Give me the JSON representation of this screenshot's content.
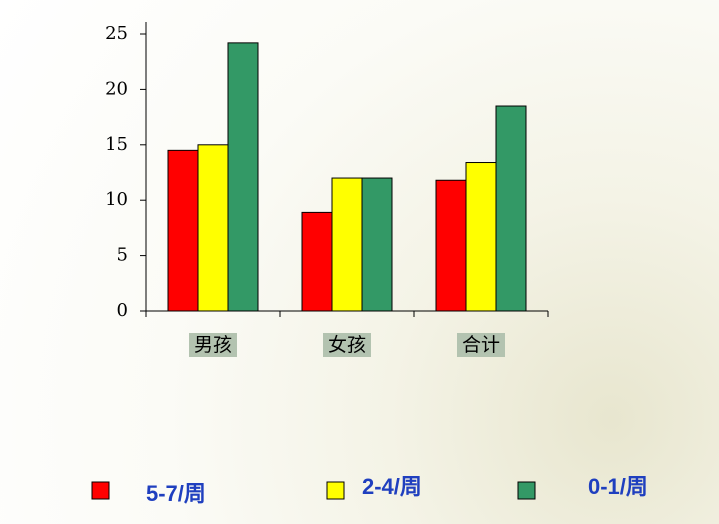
{
  "chart_data": {
    "type": "bar",
    "categories": [
      "男孩",
      "女孩",
      "合计"
    ],
    "series": [
      {
        "name": "5-7/周",
        "color": "#ff0000",
        "values": [
          14.5,
          8.9,
          11.8
        ]
      },
      {
        "name": "2-4/周",
        "color": "#ffff00",
        "values": [
          15,
          12,
          13.4
        ]
      },
      {
        "name": "0-1/周",
        "color": "#339966",
        "values": [
          24.2,
          12,
          18.5
        ]
      }
    ],
    "ylim": [
      0,
      25
    ],
    "yticks": [
      0,
      5,
      10,
      15,
      20,
      25
    ],
    "grid": false
  }
}
